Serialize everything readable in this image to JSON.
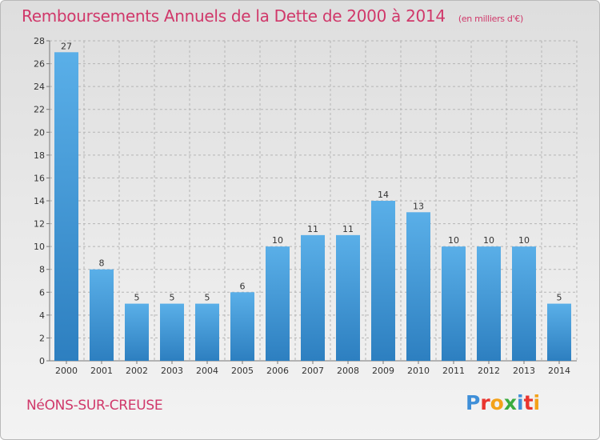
{
  "title": "Remboursements Annuels de la Dette de 2000 à 2014",
  "unit": "(en milliers d'€)",
  "town": "NéONS-SUR-CREUSE",
  "logo": {
    "letters": [
      "P",
      "r",
      "o",
      "x",
      "i",
      "t",
      "i"
    ]
  },
  "colors": {
    "accent": "#d0386a",
    "bar_light": "#5aafe8",
    "bar_dark": "#2d7fc0",
    "grid": "#b5b5b5"
  },
  "chart_data": {
    "type": "bar",
    "title": "Remboursements Annuels de la Dette de 2000 à 2014",
    "xlabel": "",
    "ylabel": "",
    "categories": [
      "2000",
      "2001",
      "2002",
      "2003",
      "2004",
      "2005",
      "2006",
      "2007",
      "2008",
      "2009",
      "2010",
      "2011",
      "2012",
      "2013",
      "2014"
    ],
    "values": [
      27,
      8,
      5,
      5,
      5,
      6,
      10,
      11,
      11,
      14,
      13,
      10,
      10,
      10,
      5
    ],
    "ylim": [
      0,
      28
    ],
    "yticks": [
      0,
      2,
      4,
      6,
      8,
      10,
      12,
      14,
      16,
      18,
      20,
      22,
      24,
      26,
      28
    ],
    "grid": true,
    "data_labels": true
  }
}
